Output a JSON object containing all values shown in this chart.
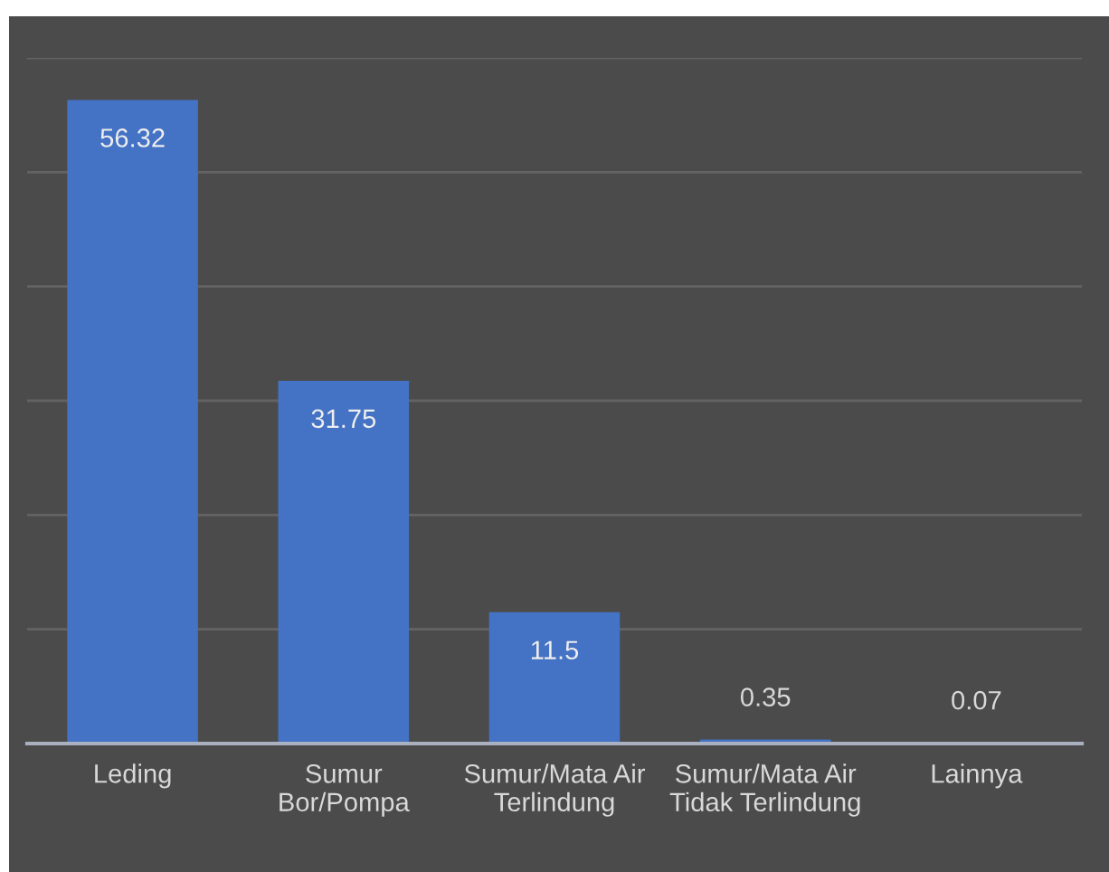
{
  "chart_data": {
    "type": "bar",
    "categories": [
      "Leding",
      "Sumur\nBor/Pompa",
      "Sumur/Mata Air\nTerlindung",
      "Sumur/Mata Air\nTidak Terlindung",
      "Lainnya"
    ],
    "values": [
      56.32,
      31.75,
      11.5,
      0.35,
      0.07
    ],
    "color": "#4472c4",
    "ylim": [
      0,
      60
    ],
    "yticks": [
      {
        "value": 0,
        "label": null
      },
      {
        "value": 10,
        "label": null
      },
      {
        "value": 20,
        "label": null
      },
      {
        "value": 30,
        "label": null
      },
      {
        "value": 40,
        "label": null
      },
      {
        "value": 50,
        "label": null
      },
      {
        "value": 60,
        "label": null
      }
    ],
    "grid": "y",
    "tick_labels": "x",
    "data_labels": true
  }
}
